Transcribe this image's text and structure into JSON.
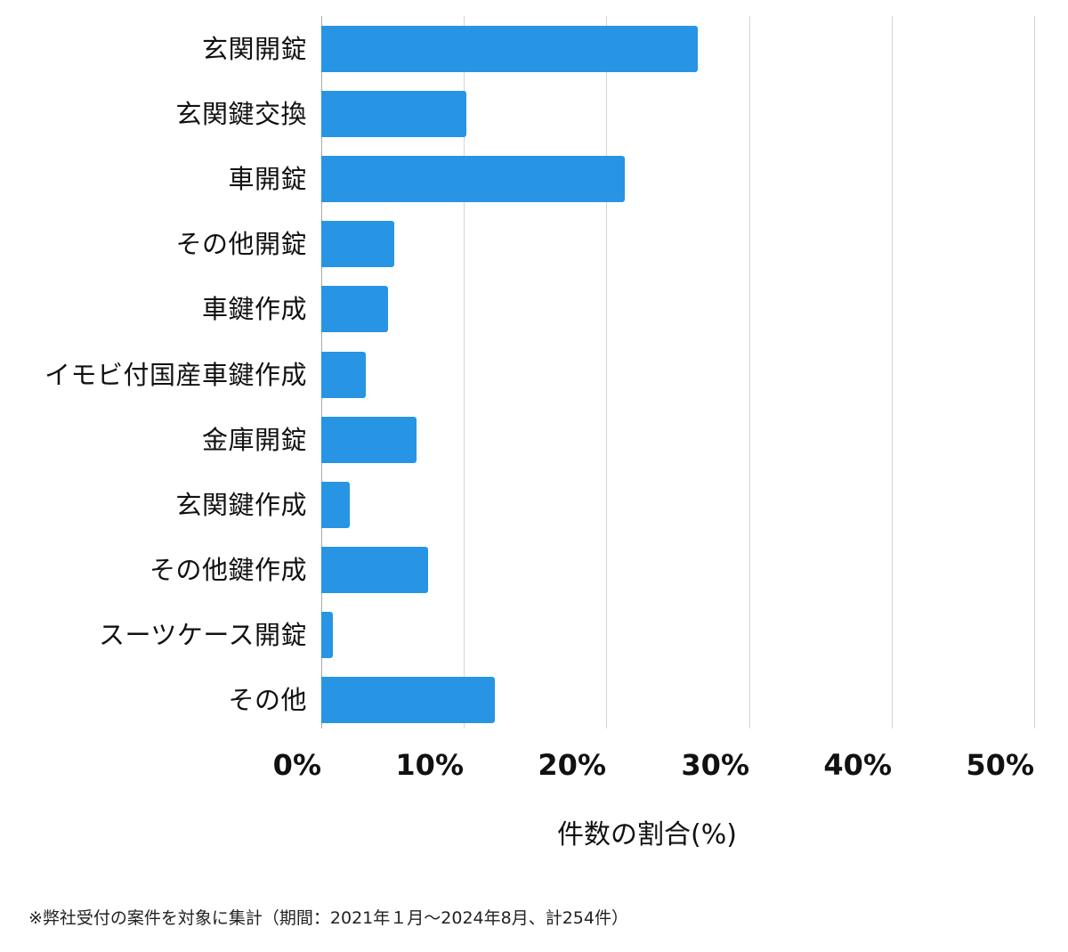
{
  "chart_data": {
    "type": "bar",
    "orientation": "horizontal",
    "title": "",
    "xlabel": "件数の割合(%)",
    "ylabel": "",
    "xlim": [
      0,
      50
    ],
    "xticks": [
      "0%",
      "10%",
      "20%",
      "30%",
      "40%",
      "50%"
    ],
    "grid": true,
    "legend": null,
    "bar_color": "#2794e4",
    "categories": [
      "玄関開錠",
      "玄関鍵交換",
      "車開錠",
      "その他開錠",
      "車鍵作成",
      "イモビ付国産車鍵作成",
      "金庫開錠",
      "玄関鍵作成",
      "その他鍵作成",
      "スーツケース開錠",
      "その他"
    ],
    "values": [
      26.4,
      10.2,
      21.3,
      5.1,
      4.7,
      3.1,
      6.7,
      2.0,
      7.5,
      0.8,
      12.2
    ]
  },
  "footnote": "※弊社受付の案件を対象に集計（期間：2021年１月～2024年8月、計254件）"
}
